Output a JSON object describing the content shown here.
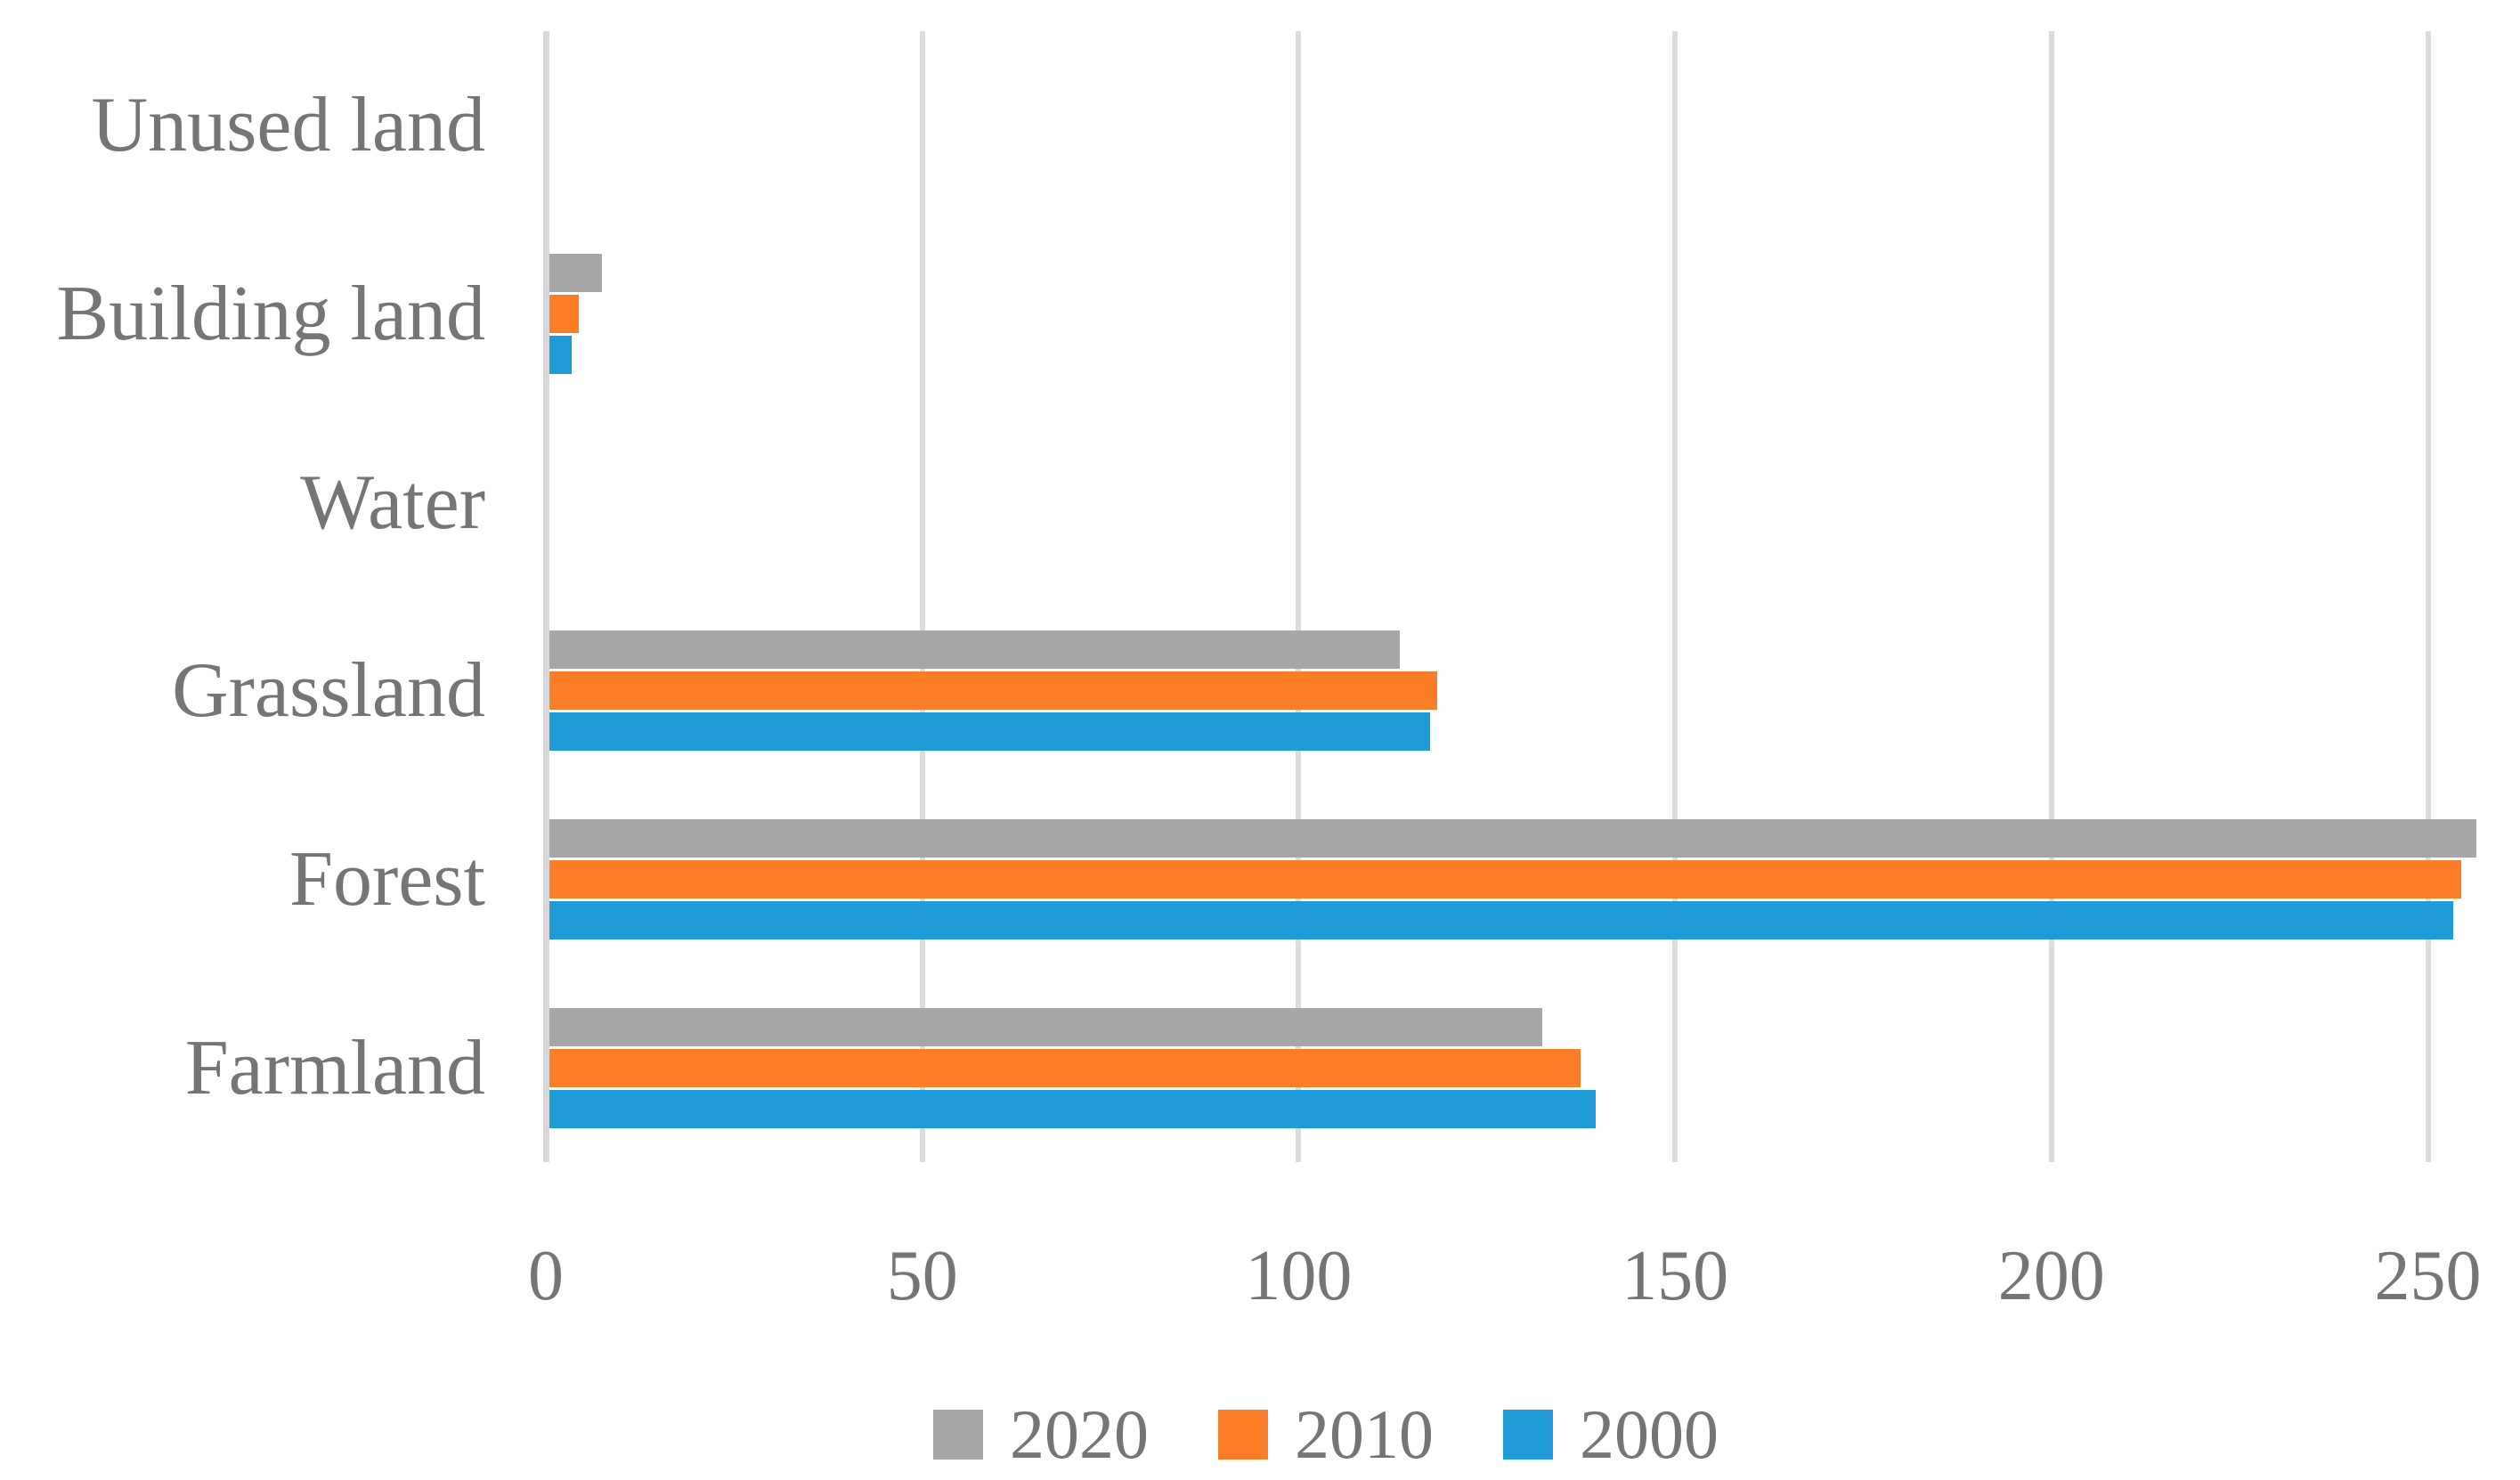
{
  "chart_data": {
    "type": "bar",
    "orientation": "horizontal",
    "title": "",
    "xlabel": "",
    "ylabel": "",
    "categories": [
      "Unused land",
      "Building land",
      "Water",
      "Grassland",
      "Forest",
      "Farmland"
    ],
    "series": [
      {
        "name": "2020",
        "color": "#A6A6A6",
        "values": [
          0,
          7,
          0,
          113,
          256,
          132
        ]
      },
      {
        "name": "2010",
        "color": "#FB7D28",
        "values": [
          0,
          4,
          0,
          118,
          254,
          137
        ]
      },
      {
        "name": "2000",
        "color": "#1F9CD8",
        "values": [
          0,
          3,
          0,
          117,
          253,
          139
        ]
      }
    ],
    "x_ticks": [
      0,
      50,
      100,
      150,
      200,
      250
    ],
    "xlim": [
      0,
      260
    ],
    "grid": "vertical-major-gridlines",
    "legend_position": "bottom-center",
    "colors": {
      "axis_line": "#D9D9D9",
      "gridline": "#DCDCDC",
      "text": "#757575"
    }
  }
}
